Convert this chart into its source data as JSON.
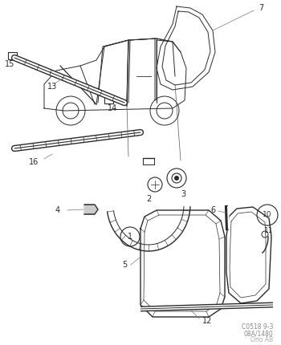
{
  "bg_color": "#ffffff",
  "line_color": "#2a2a2a",
  "fig_width": 3.5,
  "fig_height": 4.3,
  "dpi": 100,
  "code_text": "C0518 9-3\n08A/1480",
  "brand_text": "Ono AB"
}
